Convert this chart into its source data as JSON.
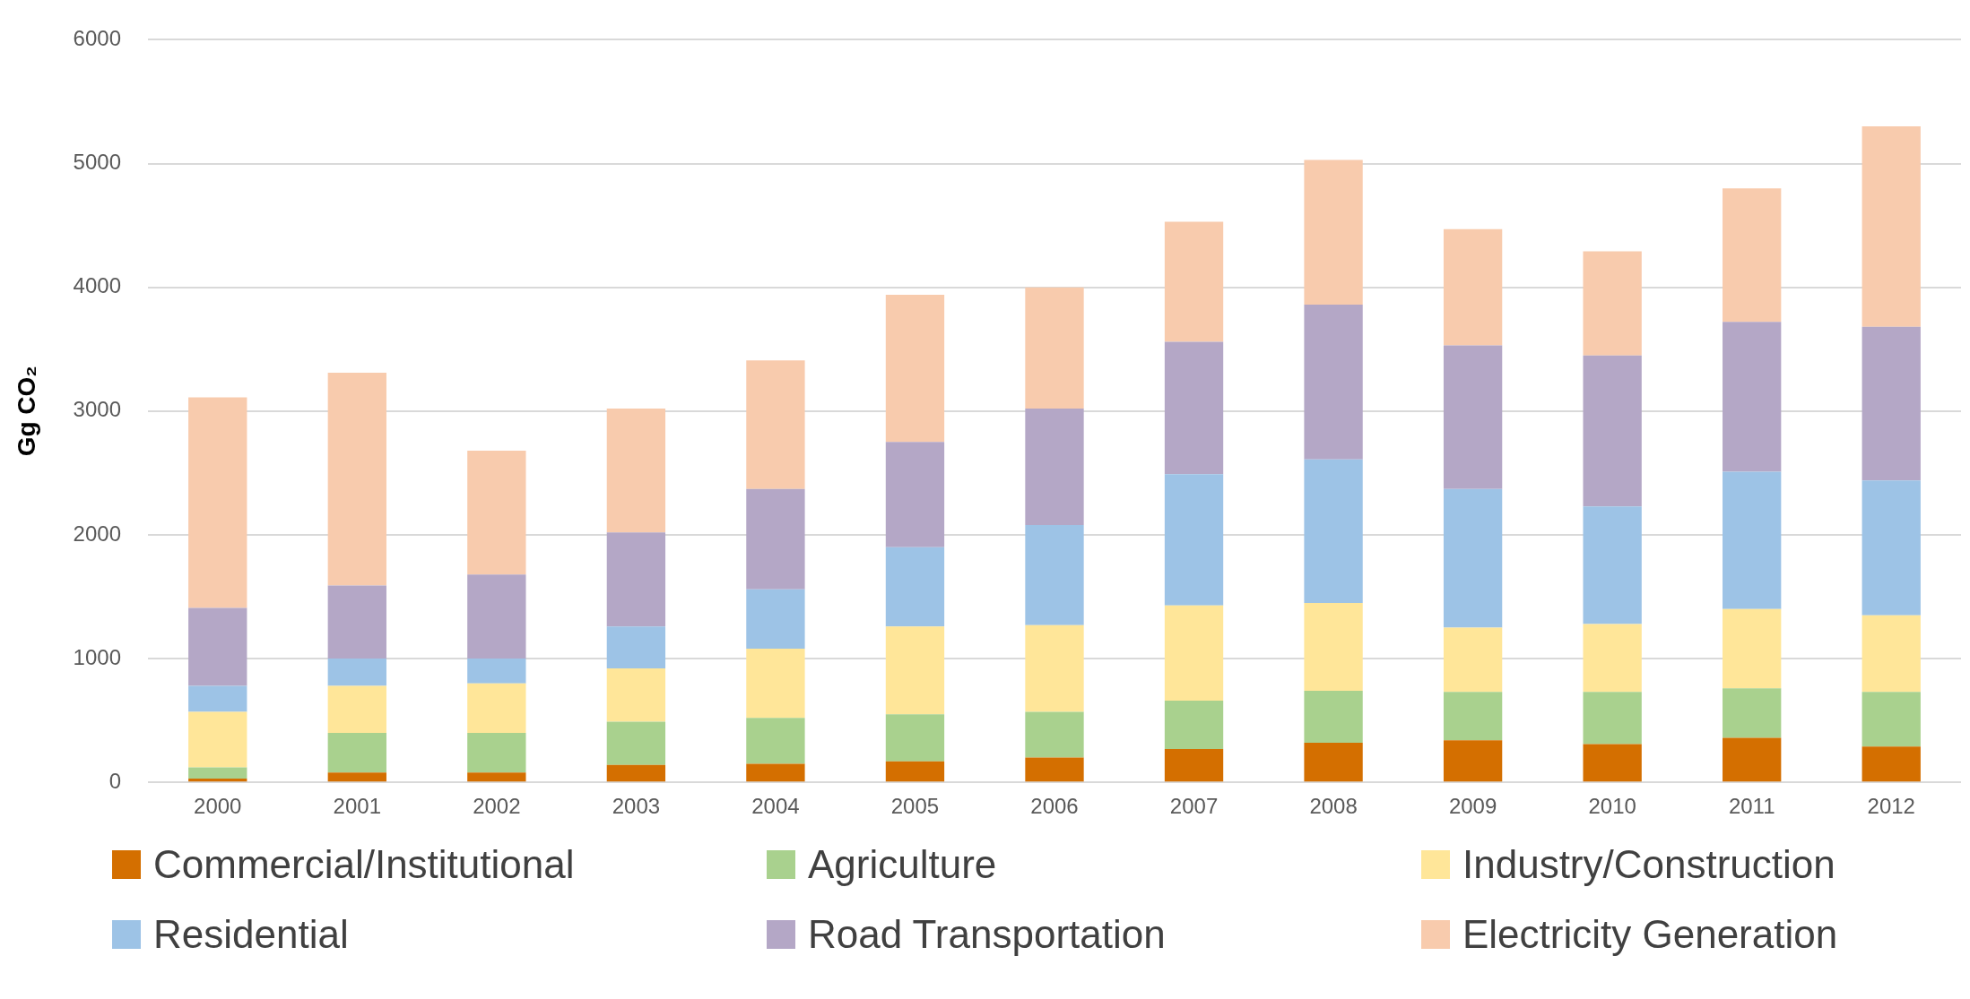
{
  "chart_data": {
    "type": "bar",
    "stacked": true,
    "ylabel": "Gg CO₂",
    "categories": [
      "2000",
      "2001",
      "2002",
      "2003",
      "2004",
      "2005",
      "2006",
      "2007",
      "2008",
      "2009",
      "2010",
      "2011",
      "2012"
    ],
    "ylim": [
      0,
      6000
    ],
    "yticks": [
      0,
      1000,
      2000,
      3000,
      4000,
      5000,
      6000
    ],
    "grid": "y",
    "legend": "bottom",
    "series": [
      {
        "name": "Commercial/Institutional",
        "color": "#d46f00",
        "values": [
          30,
          80,
          80,
          140,
          150,
          170,
          200,
          270,
          320,
          340,
          310,
          360,
          290
        ]
      },
      {
        "name": "Agriculture",
        "color": "#a9d18e",
        "values": [
          90,
          320,
          320,
          350,
          370,
          380,
          370,
          390,
          420,
          390,
          420,
          400,
          440
        ]
      },
      {
        "name": "Industry/Construction",
        "color": "#ffe699",
        "values": [
          450,
          380,
          400,
          430,
          560,
          710,
          700,
          770,
          710,
          520,
          550,
          640,
          620
        ]
      },
      {
        "name": "Residential",
        "color": "#9dc3e6",
        "values": [
          210,
          220,
          200,
          340,
          480,
          640,
          810,
          1060,
          1160,
          1120,
          950,
          1110,
          1090
        ]
      },
      {
        "name": "Road Transportation",
        "color": "#b4a7c6",
        "values": [
          630,
          590,
          680,
          760,
          810,
          850,
          940,
          1070,
          1250,
          1160,
          1220,
          1210,
          1240
        ]
      },
      {
        "name": "Electricity Generation",
        "color": "#f8cbad",
        "values": [
          1700,
          1720,
          1000,
          1000,
          1040,
          1190,
          980,
          970,
          1170,
          940,
          840,
          1080,
          1620
        ]
      }
    ]
  }
}
